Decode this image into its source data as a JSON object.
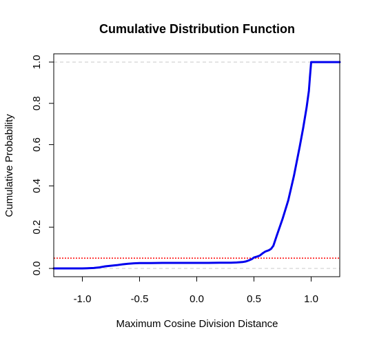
{
  "chart_data": {
    "type": "line",
    "title": "Cumulative Distribution Function",
    "xlabel": "Maximum Cosine Division Distance",
    "ylabel": "Cumulative Probability",
    "xlim": [
      -1.25,
      1.25
    ],
    "ylim": [
      -0.04,
      1.04
    ],
    "x_ticks": [
      -1.0,
      -0.5,
      0.0,
      0.5,
      1.0
    ],
    "x_tick_labels": [
      "-1.0",
      "-0.5",
      "0.0",
      "0.5",
      "1.0"
    ],
    "y_ticks": [
      0.0,
      0.2,
      0.4,
      0.6,
      0.8,
      1.0
    ],
    "y_tick_labels": [
      "0.0",
      "0.2",
      "0.4",
      "0.6",
      "0.8",
      "1.0"
    ],
    "grid": false,
    "series": [
      {
        "color": "#0000ee",
        "style": "solid",
        "x": [
          -1.25,
          -1.0,
          -0.9,
          -0.85,
          -0.8,
          -0.75,
          -0.7,
          -0.65,
          -0.6,
          -0.55,
          -0.5,
          -0.4,
          -0.3,
          -0.2,
          -0.1,
          0.0,
          0.1,
          0.2,
          0.3,
          0.35,
          0.4,
          0.43,
          0.45,
          0.48,
          0.5,
          0.53,
          0.55,
          0.58,
          0.6,
          0.63,
          0.65,
          0.67,
          0.7,
          0.75,
          0.8,
          0.85,
          0.9,
          0.93,
          0.96,
          0.98,
          0.99,
          1.0,
          1.05,
          1.1,
          1.25
        ],
        "y": [
          0.0,
          0.0,
          0.002,
          0.005,
          0.01,
          0.013,
          0.016,
          0.02,
          0.023,
          0.025,
          0.026,
          0.026,
          0.027,
          0.027,
          0.027,
          0.027,
          0.027,
          0.028,
          0.028,
          0.029,
          0.031,
          0.034,
          0.038,
          0.045,
          0.053,
          0.058,
          0.062,
          0.075,
          0.082,
          0.088,
          0.095,
          0.11,
          0.16,
          0.24,
          0.33,
          0.45,
          0.59,
          0.68,
          0.78,
          0.86,
          0.93,
          1.0,
          1.0,
          1.0,
          1.0
        ]
      }
    ],
    "reference_lines": [
      {
        "y": 0.05,
        "color": "#ff0000",
        "style": "dotted"
      },
      {
        "y": 0.0,
        "color": "#c8c8c8",
        "style": "dashed"
      },
      {
        "y": 1.0,
        "color": "#c8c8c8",
        "style": "dashed"
      }
    ]
  }
}
